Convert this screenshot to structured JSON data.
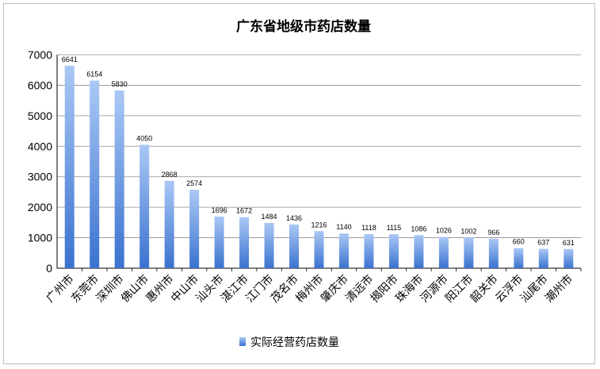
{
  "chart_data": {
    "type": "bar",
    "title": "广东省地级市药店数量",
    "categories": [
      "广州市",
      "东莞市",
      "深圳市",
      "佛山市",
      "惠州市",
      "中山市",
      "汕头市",
      "湛江市",
      "江门市",
      "茂名市",
      "梅州市",
      "肇庆市",
      "清远市",
      "揭阳市",
      "珠海市",
      "河源市",
      "阳江市",
      "韶关市",
      "云浮市",
      "汕尾市",
      "潮州市"
    ],
    "series": [
      {
        "name": "实际经营药店数量",
        "values": [
          6641,
          6154,
          5830,
          4050,
          2868,
          2574,
          1696,
          1672,
          1484,
          1436,
          1216,
          1140,
          1118,
          1115,
          1086,
          1026,
          1002,
          966,
          660,
          637,
          631
        ]
      }
    ],
    "y_ticks": [
      "0",
      "1000",
      "2000",
      "3000",
      "4000",
      "5000",
      "6000",
      "7000"
    ],
    "ylim": [
      0,
      7000
    ],
    "grid": true,
    "legend_position": "bottom",
    "colors": {
      "bar_light": "#aac8f5",
      "bar_dark": "#3a72cf",
      "grid": "#8c8c8c"
    }
  }
}
